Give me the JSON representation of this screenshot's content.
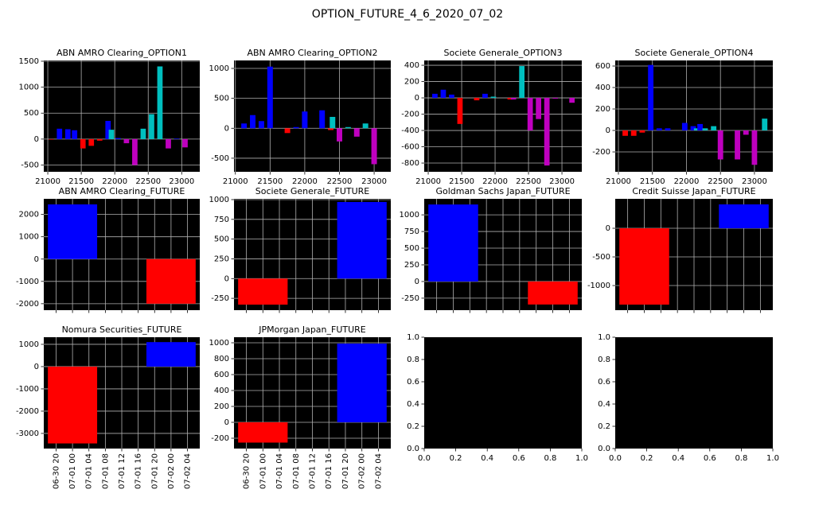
{
  "title": "OPTION_FUTURE_4_6_2020_07_02",
  "chart_data": [
    {
      "type": "bar",
      "title": "ABN AMRO Clearing_OPTION1",
      "x": [
        21050,
        21175,
        21300,
        21400,
        21525,
        21650,
        21775,
        21900,
        21950,
        22050,
        22175,
        22300,
        22425,
        22550,
        22675,
        22800,
        22925,
        23050
      ],
      "values": [
        -10,
        200,
        190,
        170,
        -180,
        -130,
        -30,
        350,
        180,
        20,
        -80,
        -500,
        200,
        480,
        1400,
        -180,
        10,
        -160
      ],
      "colors": [
        "#ff0000",
        "#0000ff",
        "#0000ff",
        "#0000ff",
        "#ff0000",
        "#ff0000",
        "#ff0000",
        "#0000ff",
        "#00bfbf",
        "#0000ff",
        "#bf00bf",
        "#bf00bf",
        "#00bfbf",
        "#00bfbf",
        "#00bfbf",
        "#bf00bf",
        "#0000ff",
        "#bf00bf"
      ],
      "xlim": [
        20940,
        23270
      ],
      "ylim": [
        -630,
        1515
      ],
      "xticks": [
        21000,
        21500,
        22000,
        22500,
        23000
      ],
      "yticks": [
        -500,
        0,
        500,
        1000,
        1500
      ],
      "grid": true
    },
    {
      "type": "bar",
      "title": "ABN AMRO Clearing_OPTION2",
      "x": [
        21125,
        21250,
        21375,
        21500,
        21750,
        21875,
        22000,
        22250,
        22375,
        22400,
        22500,
        22625,
        22750,
        22875,
        23000
      ],
      "values": [
        80,
        220,
        120,
        1030,
        -80,
        20,
        280,
        300,
        -30,
        190,
        -220,
        20,
        -140,
        80,
        -600
      ],
      "colors": [
        "#0000ff",
        "#0000ff",
        "#0000ff",
        "#0000ff",
        "#ff0000",
        "#0000ff",
        "#0000ff",
        "#0000ff",
        "#ff0000",
        "#00bfbf",
        "#bf00bf",
        "#00bfbf",
        "#bf00bf",
        "#00bfbf",
        "#bf00bf"
      ],
      "xlim": [
        20980,
        23240
      ],
      "ylim": [
        -727,
        1133
      ],
      "xticks": [
        21000,
        21500,
        22000,
        22500,
        23000
      ],
      "yticks": [
        -500,
        0,
        500,
        1000
      ],
      "grid": true
    },
    {
      "type": "bar",
      "title": "Societe Generale_OPTION3",
      "x": [
        21100,
        21225,
        21350,
        21475,
        21725,
        21850,
        21975,
        22225,
        22275,
        22400,
        22525,
        22650,
        22775,
        22900,
        23150
      ],
      "values": [
        50,
        100,
        40,
        -320,
        -30,
        50,
        15,
        -20,
        -20,
        390,
        -400,
        -260,
        -830,
        -10,
        -60
      ],
      "colors": [
        "#0000ff",
        "#0000ff",
        "#0000ff",
        "#ff0000",
        "#ff0000",
        "#0000ff",
        "#00bfbf",
        "#ff0000",
        "#bf00bf",
        "#00bfbf",
        "#bf00bf",
        "#bf00bf",
        "#bf00bf",
        "#bf00bf",
        "#bf00bf"
      ],
      "xlim": [
        20940,
        23297
      ],
      "ylim": [
        -907,
        459
      ],
      "xticks": [
        21000,
        21500,
        22000,
        22500,
        23000
      ],
      "yticks": [
        -800,
        -600,
        -400,
        -200,
        0,
        200,
        400
      ],
      "grid": true
    },
    {
      "type": "bar",
      "title": "Societe Generale_OPTION4",
      "x": [
        21100,
        21225,
        21350,
        21475,
        21600,
        21725,
        21975,
        22100,
        22150,
        22200,
        22275,
        22400,
        22500,
        22750,
        22875,
        23000,
        23150
      ],
      "values": [
        -50,
        -50,
        -20,
        610,
        20,
        20,
        70,
        40,
        20,
        60,
        20,
        40,
        -270,
        -270,
        -40,
        -320,
        110
      ],
      "colors": [
        "#ff0000",
        "#ff0000",
        "#ff0000",
        "#0000ff",
        "#0000ff",
        "#0000ff",
        "#0000ff",
        "#0000ff",
        "#00bfbf",
        "#0000ff",
        "#00bfbf",
        "#00bfbf",
        "#bf00bf",
        "#bf00bf",
        "#bf00bf",
        "#bf00bf",
        "#00bfbf"
      ],
      "xlim": [
        20953,
        23270
      ],
      "ylim": [
        -385,
        652
      ],
      "xticks": [
        21000,
        21500,
        22000,
        22500,
        23000
      ],
      "yticks": [
        -200,
        0,
        200,
        400,
        600
      ],
      "grid": true
    },
    {
      "type": "timebar",
      "title": "ABN AMRO Clearing_FUTURE",
      "x": [
        "07-01 00",
        "07-02 00"
      ],
      "values": [
        2450,
        -2000
      ],
      "colors": [
        "#0000ff",
        "#ff0000"
      ],
      "xlim": [
        "06-30 17",
        "07-02 07"
      ],
      "ylim": [
        -2290,
        2700
      ],
      "xticks": [
        "06-30 20",
        "07-01 00",
        "07-01 04",
        "07-01 08",
        "07-01 12",
        "07-01 16",
        "07-01 20",
        "07-02 00",
        "07-02 04"
      ],
      "xticklabels": false,
      "yticks": [
        -2000,
        -1000,
        0,
        1000,
        2000
      ],
      "grid": true
    },
    {
      "type": "timebar",
      "title": "Societe Generale_FUTURE",
      "x": [
        "07-01 00",
        "07-02 00"
      ],
      "values": [
        -330,
        970
      ],
      "colors": [
        "#ff0000",
        "#0000ff"
      ],
      "xlim": [
        "06-30 17",
        "07-02 07"
      ],
      "ylim": [
        -400,
        1010
      ],
      "xticks": [
        "06-30 20",
        "07-01 00",
        "07-01 04",
        "07-01 08",
        "07-01 12",
        "07-01 16",
        "07-01 20",
        "07-02 00",
        "07-02 04"
      ],
      "xticklabels": false,
      "yticks": [
        -250,
        0,
        250,
        500,
        750,
        1000
      ],
      "grid": true
    },
    {
      "type": "timebar",
      "title": "Goldman Sachs Japan_FUTURE",
      "x": [
        "07-01 00",
        "07-02 00"
      ],
      "values": [
        1155,
        -345
      ],
      "colors": [
        "#0000ff",
        "#ff0000"
      ],
      "xlim": [
        "06-30 17",
        "07-02 07"
      ],
      "ylim": [
        -430,
        1240
      ],
      "xticks": [
        "06-30 20",
        "07-01 00",
        "07-01 04",
        "07-01 08",
        "07-01 12",
        "07-01 16",
        "07-01 20",
        "07-02 00",
        "07-02 04"
      ],
      "xticklabels": false,
      "yticks": [
        -250,
        0,
        250,
        500,
        750,
        1000
      ],
      "grid": true
    },
    {
      "type": "timebar",
      "title": "Credit Suisse Japan_FUTURE",
      "x": [
        "07-01 00",
        "07-02 00"
      ],
      "values": [
        -1333,
        417
      ],
      "colors": [
        "#ff0000",
        "#0000ff"
      ],
      "xlim": [
        "06-30 17",
        "07-02 07"
      ],
      "ylim": [
        -1430,
        514
      ],
      "xticks": [
        "06-30 20",
        "07-01 00",
        "07-01 04",
        "07-01 08",
        "07-01 12",
        "07-01 16",
        "07-01 20",
        "07-02 00",
        "07-02 04"
      ],
      "xticklabels": false,
      "yticks": [
        -1000,
        -500,
        0
      ],
      "grid": true
    },
    {
      "type": "timebar",
      "title": "Nomura Securities_FUTURE",
      "x": [
        "07-01 00",
        "07-02 00"
      ],
      "values": [
        -3450,
        1100
      ],
      "colors": [
        "#ff0000",
        "#0000ff"
      ],
      "xlim": [
        "06-30 17",
        "07-02 07"
      ],
      "ylim": [
        -3680,
        1320
      ],
      "xticks": [
        "06-30 20",
        "07-01 00",
        "07-01 04",
        "07-01 08",
        "07-01 12",
        "07-01 16",
        "07-01 20",
        "07-02 00",
        "07-02 04"
      ],
      "xticklabels": true,
      "yticks": [
        -3000,
        -2000,
        -1000,
        0,
        1000
      ],
      "grid": true
    },
    {
      "type": "timebar",
      "title": "JPMorgan Japan_FUTURE",
      "x": [
        "07-01 00",
        "07-02 00"
      ],
      "values": [
        -255,
        990
      ],
      "colors": [
        "#ff0000",
        "#0000ff"
      ],
      "xlim": [
        "06-30 17",
        "07-02 07"
      ],
      "ylim": [
        -330,
        1070
      ],
      "xticks": [
        "06-30 20",
        "07-01 00",
        "07-01 04",
        "07-01 08",
        "07-01 12",
        "07-01 16",
        "07-01 20",
        "07-02 00",
        "07-02 04"
      ],
      "xticklabels": true,
      "yticks": [
        -200,
        0,
        200,
        400,
        600,
        800,
        1000
      ],
      "grid": true
    },
    {
      "type": "empty",
      "xlim": [
        0,
        1
      ],
      "ylim": [
        0,
        1
      ],
      "xticks": [
        {
          "value": 0,
          "label": "0.0"
        },
        0.2,
        0.4,
        0.6,
        0.8,
        {
          "value": 1,
          "label": "1.0"
        }
      ],
      "yticks": [
        {
          "value": 0,
          "label": "0.0"
        },
        0.2,
        0.4,
        0.6,
        0.8,
        {
          "value": 1,
          "label": "1.0"
        }
      ],
      "grid": false
    },
    {
      "type": "empty",
      "xlim": [
        0,
        1
      ],
      "ylim": [
        0,
        1
      ],
      "xticks": [
        {
          "value": 0,
          "label": "0.0"
        },
        0.2,
        0.4,
        0.6,
        0.8,
        {
          "value": 1,
          "label": "1.0"
        }
      ],
      "yticks": [
        {
          "value": 0,
          "label": "0.0"
        },
        0.2,
        0.4,
        0.6,
        0.8,
        {
          "value": 1,
          "label": "1.0"
        }
      ],
      "grid": false
    }
  ]
}
